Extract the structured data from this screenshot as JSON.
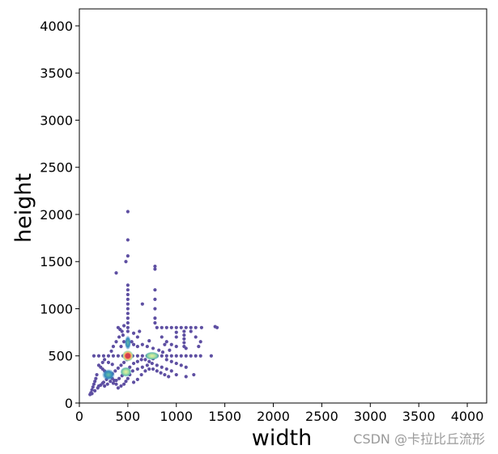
{
  "chart_data": {
    "type": "scatter",
    "title": "",
    "xlabel": "width",
    "ylabel": "height",
    "xlim": [
      0,
      4200
    ],
    "ylim": [
      0,
      4180
    ],
    "xticks": [
      0,
      500,
      1000,
      1500,
      2000,
      2500,
      3000,
      3500,
      4000
    ],
    "yticks": [
      0,
      500,
      1000,
      1500,
      2000,
      2500,
      3000,
      3500,
      4000
    ],
    "grid": false,
    "legend": "none",
    "colormap": "Spectral_r density",
    "point_color": "#5e4fa2",
    "density_peak": {
      "x": 500,
      "y": 500,
      "color": "#d53e4f"
    },
    "density_clusters": [
      {
        "x": 500,
        "y": 500
      },
      {
        "x": 480,
        "y": 330
      },
      {
        "x": 750,
        "y": 500
      },
      {
        "x": 300,
        "y": 300
      },
      {
        "x": 500,
        "y": 640
      }
    ],
    "points": [
      [
        500,
        2030
      ],
      [
        500,
        1730
      ],
      [
        500,
        1560
      ],
      [
        480,
        1500
      ],
      [
        780,
        1450
      ],
      [
        780,
        1420
      ],
      [
        380,
        1380
      ],
      [
        500,
        1250
      ],
      [
        500,
        1200
      ],
      [
        500,
        1150
      ],
      [
        500,
        1100
      ],
      [
        500,
        1050
      ],
      [
        500,
        1000
      ],
      [
        500,
        950
      ],
      [
        500,
        900
      ],
      [
        500,
        850
      ],
      [
        500,
        800
      ],
      [
        500,
        760
      ],
      [
        780,
        1200
      ],
      [
        780,
        1100
      ],
      [
        780,
        1000
      ],
      [
        780,
        900
      ],
      [
        780,
        850
      ],
      [
        650,
        1050
      ],
      [
        800,
        800
      ],
      [
        850,
        800
      ],
      [
        900,
        800
      ],
      [
        950,
        800
      ],
      [
        1000,
        800
      ],
      [
        1050,
        800
      ],
      [
        1100,
        800
      ],
      [
        1150,
        800
      ],
      [
        1200,
        800
      ],
      [
        1260,
        800
      ],
      [
        1420,
        800
      ],
      [
        1400,
        810
      ],
      [
        1080,
        760
      ],
      [
        1080,
        720
      ],
      [
        1080,
        680
      ],
      [
        1080,
        640
      ],
      [
        1080,
        600
      ],
      [
        1100,
        580
      ],
      [
        1000,
        750
      ],
      [
        1000,
        700
      ],
      [
        1150,
        760
      ],
      [
        1200,
        700
      ],
      [
        1250,
        650
      ],
      [
        1230,
        600
      ],
      [
        1250,
        500
      ],
      [
        1360,
        500
      ],
      [
        1200,
        500
      ],
      [
        1150,
        500
      ],
      [
        1100,
        500
      ],
      [
        1050,
        500
      ],
      [
        1000,
        500
      ],
      [
        950,
        500
      ],
      [
        900,
        500
      ],
      [
        850,
        500
      ],
      [
        150,
        500
      ],
      [
        200,
        500
      ],
      [
        250,
        500
      ],
      [
        300,
        500
      ],
      [
        350,
        500
      ],
      [
        400,
        500
      ],
      [
        450,
        500
      ],
      [
        550,
        500
      ],
      [
        600,
        500
      ],
      [
        650,
        500
      ],
      [
        700,
        500
      ],
      [
        750,
        500
      ],
      [
        800,
        500
      ],
      [
        400,
        800
      ],
      [
        420,
        780
      ],
      [
        440,
        760
      ],
      [
        460,
        820
      ],
      [
        410,
        700
      ],
      [
        380,
        650
      ],
      [
        350,
        600
      ],
      [
        330,
        550
      ],
      [
        430,
        600
      ],
      [
        460,
        650
      ],
      [
        540,
        650
      ],
      [
        560,
        620
      ],
      [
        600,
        600
      ],
      [
        650,
        620
      ],
      [
        700,
        600
      ],
      [
        720,
        660
      ],
      [
        760,
        580
      ],
      [
        820,
        560
      ],
      [
        860,
        540
      ],
      [
        900,
        460
      ],
      [
        950,
        440
      ],
      [
        1000,
        420
      ],
      [
        1050,
        400
      ],
      [
        1100,
        380
      ],
      [
        1180,
        300
      ],
      [
        1100,
        280
      ],
      [
        1000,
        300
      ],
      [
        950,
        340
      ],
      [
        900,
        360
      ],
      [
        850,
        380
      ],
      [
        800,
        400
      ],
      [
        750,
        420
      ],
      [
        700,
        400
      ],
      [
        650,
        380
      ],
      [
        600,
        360
      ],
      [
        550,
        340
      ],
      [
        520,
        300
      ],
      [
        500,
        260
      ],
      [
        480,
        230
      ],
      [
        460,
        200
      ],
      [
        430,
        180
      ],
      [
        400,
        160
      ],
      [
        380,
        200
      ],
      [
        360,
        240
      ],
      [
        340,
        260
      ],
      [
        320,
        280
      ],
      [
        300,
        300
      ],
      [
        280,
        320
      ],
      [
        260,
        340
      ],
      [
        240,
        360
      ],
      [
        220,
        380
      ],
      [
        200,
        400
      ],
      [
        180,
        300
      ],
      [
        170,
        260
      ],
      [
        160,
        230
      ],
      [
        150,
        200
      ],
      [
        140,
        170
      ],
      [
        130,
        140
      ],
      [
        120,
        110
      ],
      [
        110,
        90
      ],
      [
        130,
        100
      ],
      [
        160,
        130
      ],
      [
        190,
        160
      ],
      [
        220,
        190
      ],
      [
        250,
        220
      ],
      [
        280,
        250
      ],
      [
        310,
        280
      ],
      [
        340,
        310
      ],
      [
        370,
        340
      ],
      [
        400,
        370
      ],
      [
        430,
        400
      ],
      [
        460,
        430
      ],
      [
        490,
        460
      ],
      [
        200,
        180
      ],
      [
        240,
        210
      ],
      [
        260,
        180
      ],
      [
        290,
        200
      ],
      [
        320,
        230
      ],
      [
        350,
        210
      ],
      [
        380,
        240
      ],
      [
        410,
        260
      ],
      [
        440,
        290
      ],
      [
        470,
        320
      ],
      [
        520,
        380
      ],
      [
        560,
        420
      ],
      [
        600,
        440
      ],
      [
        640,
        460
      ],
      [
        680,
        460
      ],
      [
        720,
        440
      ],
      [
        760,
        470
      ],
      [
        640,
        300
      ],
      [
        680,
        340
      ],
      [
        720,
        360
      ],
      [
        760,
        360
      ],
      [
        800,
        340
      ],
      [
        840,
        320
      ],
      [
        880,
        300
      ],
      [
        920,
        280
      ],
      [
        600,
        250
      ],
      [
        560,
        220
      ],
      [
        340,
        410
      ],
      [
        300,
        430
      ],
      [
        260,
        460
      ],
      [
        240,
        430
      ],
      [
        600,
        700
      ],
      [
        620,
        760
      ],
      [
        560,
        740
      ],
      [
        450,
        720
      ],
      [
        1000,
        600
      ],
      [
        950,
        620
      ],
      [
        900,
        650
      ],
      [
        850,
        700
      ],
      [
        880,
        620
      ],
      [
        930,
        560
      ]
    ]
  },
  "watermark": "CSDN @卡拉比丘流形"
}
